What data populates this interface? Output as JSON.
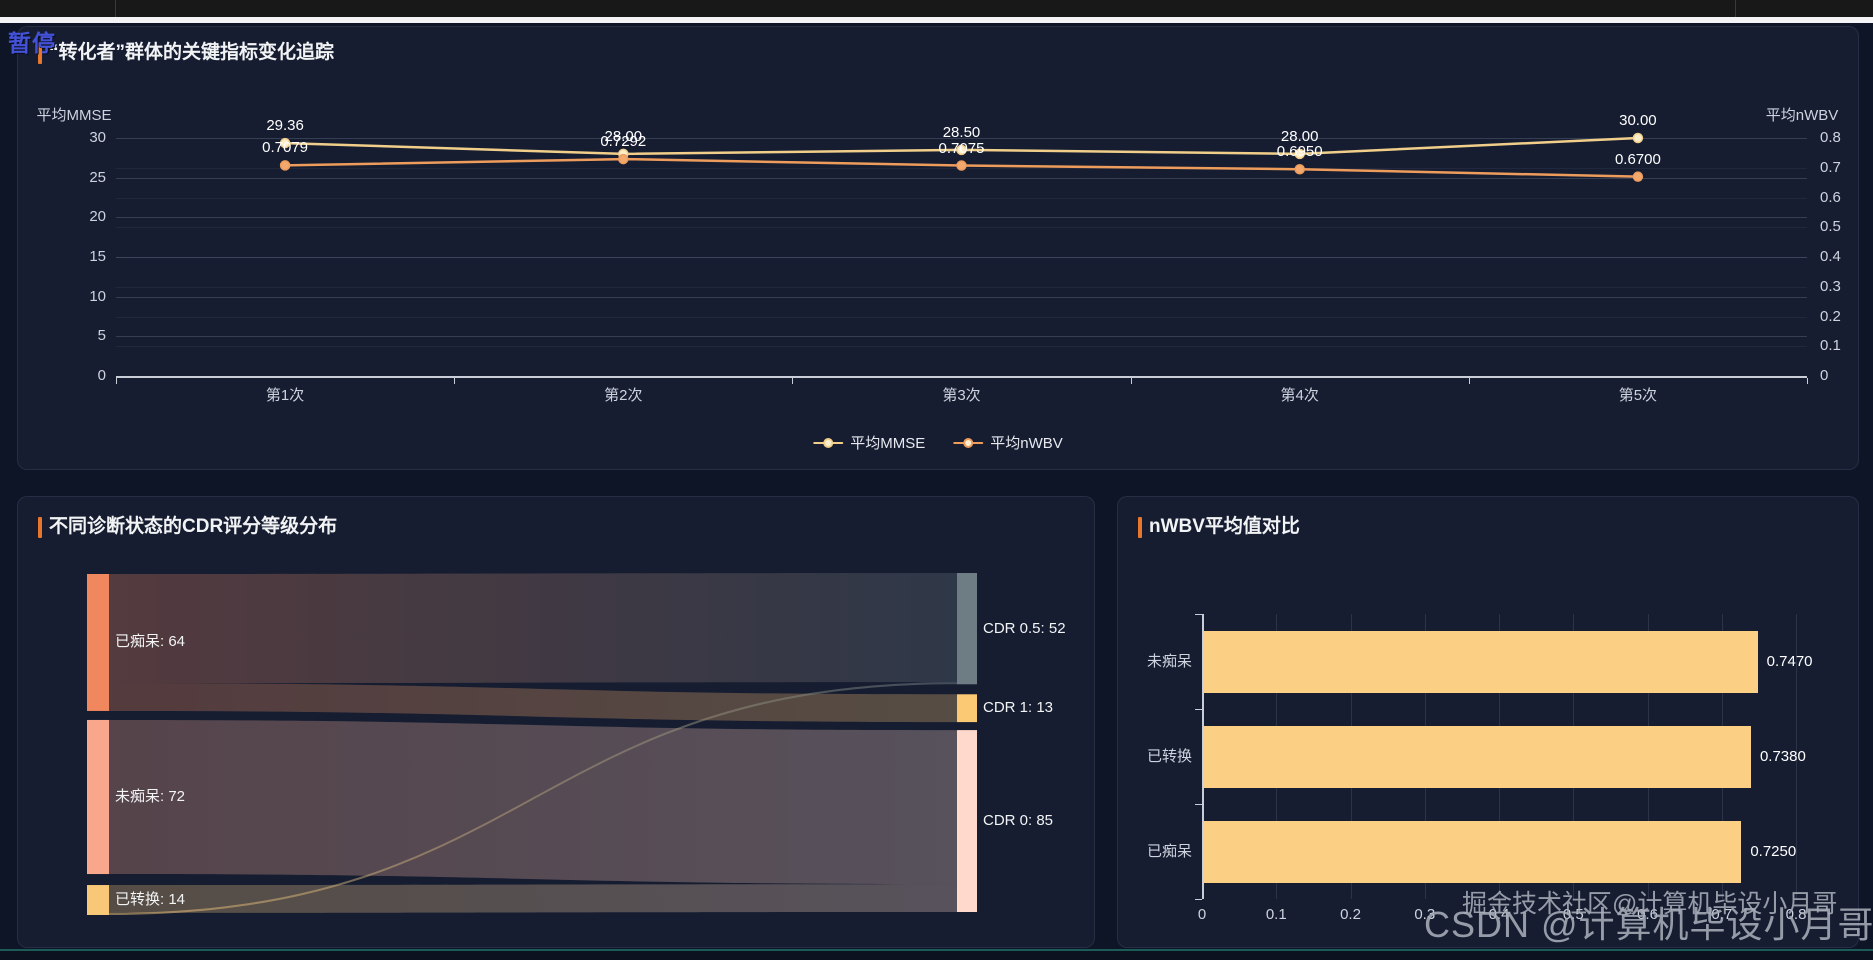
{
  "page": {
    "pause_label": "暂停",
    "watermark_big": "CSDN @计算机毕设小月哥",
    "watermark_small": "掘金技术社区@计算机毕设小月哥",
    "accent_color": "#e8772e",
    "background_color": "#0e1526",
    "card_color": "#161d31"
  },
  "chart_data": [
    {
      "id": "mmse-nwbv-trend",
      "type": "line",
      "title": "“转化者”群体的关键指标变化追踪",
      "categories": [
        "第1次",
        "第2次",
        "第3次",
        "第4次",
        "第5次"
      ],
      "series": [
        {
          "name": "平均MMSE",
          "axis": "left",
          "color": "#f1cf8a",
          "marker_fill": "#fdeecb",
          "values": [
            29.36,
            28.0,
            28.5,
            28.0,
            30.0
          ],
          "labels": [
            "29.36",
            "28.00",
            "28.50",
            "28.00",
            "30.00"
          ]
        },
        {
          "name": "平均nWBV",
          "axis": "right",
          "color": "#ee9c5c",
          "marker_fill": "#f3a96e",
          "values": [
            0.7079,
            0.7292,
            0.7075,
            0.695,
            0.67
          ],
          "labels": [
            "0.7079",
            "0.7292",
            "0.7075",
            "0.6950",
            "0.6700"
          ]
        }
      ],
      "y_left": {
        "name": "平均MMSE",
        "min": 0,
        "max": 30,
        "ticks": [
          "30",
          "25",
          "20",
          "15",
          "10",
          "5",
          "0"
        ]
      },
      "y_right": {
        "name": "平均nWBV",
        "min": 0,
        "max": 0.8,
        "ticks": [
          "0.8",
          "0.7",
          "0.6",
          "0.5",
          "0.4",
          "0.3",
          "0.2",
          "0.1",
          "0"
        ]
      },
      "legend": {
        "position": "bottom",
        "items": [
          "平均MMSE",
          "平均nWBV"
        ]
      },
      "grid": true
    },
    {
      "id": "cdr-sankey",
      "type": "sankey",
      "title": "不同诊断状态的CDR评分等级分布",
      "nodes": [
        {
          "name": "已痴呆",
          "value": 64,
          "label": "已痴呆: 64",
          "side": "left",
          "color": "#f1875f"
        },
        {
          "name": "未痴呆",
          "value": 72,
          "label": "未痴呆: 72",
          "side": "left",
          "color": "#f9a78c"
        },
        {
          "name": "已转换",
          "value": 14,
          "label": "已转换: 14",
          "side": "left",
          "color": "#f8c878"
        },
        {
          "name": "CDR 0.5",
          "value": 52,
          "label": "CDR 0.5: 52",
          "side": "right",
          "color": "#6e7d83"
        },
        {
          "name": "CDR 1",
          "value": 13,
          "label": "CDR 1: 13",
          "side": "right",
          "color": "#fbc873"
        },
        {
          "name": "CDR 0",
          "value": 85,
          "label": "CDR 0: 85",
          "side": "right",
          "color": "#ffd9cb"
        }
      ],
      "links": [
        {
          "source": "已痴呆",
          "target": "CDR 0.5",
          "value": 51
        },
        {
          "source": "已痴呆",
          "target": "CDR 1",
          "value": 13
        },
        {
          "source": "未痴呆",
          "target": "CDR 0",
          "value": 72
        },
        {
          "source": "已转换",
          "target": "CDR 0",
          "value": 13
        },
        {
          "source": "已转换",
          "target": "CDR 0.5",
          "value": 1
        }
      ]
    },
    {
      "id": "nwbv-bars",
      "type": "bar",
      "title": "nWBV平均值对比",
      "orientation": "horizontal",
      "categories": [
        "未痴呆",
        "已转换",
        "已痴呆"
      ],
      "values": [
        0.747,
        0.738,
        0.725
      ],
      "value_labels": [
        "0.7470",
        "0.7380",
        "0.7250"
      ],
      "bar_color": "#fbd084",
      "xlim": [
        0,
        0.8
      ],
      "x_ticks": [
        "0",
        "0.1",
        "0.2",
        "0.3",
        "0.4",
        "0.5",
        "0.6",
        "0.7",
        "0.8"
      ],
      "grid": true
    }
  ]
}
